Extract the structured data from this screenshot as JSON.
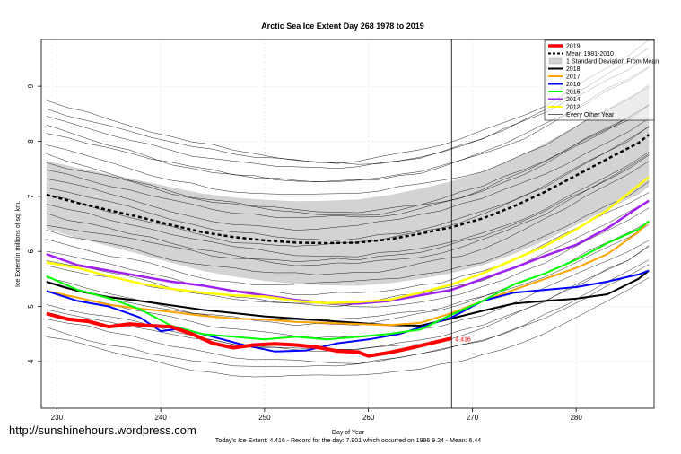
{
  "chart_data": {
    "type": "line",
    "title": "Arctic Sea Ice Extent Day 268 1978 to 2019",
    "xlabel": "Day of Year",
    "ylabel": "Ice Extent in millions of sq. km.",
    "caption": "Today's Ice Extent: 4.416  - Record for the day: 7.901 which occurred on 1996 9 24  - Mean: 6.44",
    "xlim": [
      228.5,
      287.5
    ],
    "ylim": [
      3.15,
      9.85
    ],
    "xticks": [
      230,
      240,
      250,
      260,
      270,
      280
    ],
    "yticks": [
      4,
      5,
      6,
      7,
      8,
      9
    ],
    "grid": true,
    "vline_day": 268,
    "annotation": {
      "text": "4.416",
      "x": 268,
      "y": 4.416,
      "color": "#ff0000"
    },
    "legend_position": "top-right",
    "legend": [
      {
        "label": "2019",
        "color": "#ff0000",
        "style": "thick"
      },
      {
        "label": "Mean 1981-2010",
        "color": "#000000",
        "style": "dashed"
      },
      {
        "label": "1 Standard Deviation From Mean",
        "color": "#d3d3d3",
        "style": "band"
      },
      {
        "label": "2018",
        "color": "#000000",
        "style": "solid"
      },
      {
        "label": "2017",
        "color": "#ffa500",
        "style": "solid"
      },
      {
        "label": "2016",
        "color": "#0000ff",
        "style": "solid"
      },
      {
        "label": "2015",
        "color": "#00ff00",
        "style": "solid"
      },
      {
        "label": "2014",
        "color": "#a020f0",
        "style": "solid"
      },
      {
        "label": "2012",
        "color": "#ffff00",
        "style": "solid"
      },
      {
        "label": "Every Other Year",
        "color": "#000000",
        "style": "thin"
      }
    ],
    "series": [
      {
        "name": "2019",
        "color": "#ff0000",
        "width": 4,
        "x": [
          229,
          231,
          233,
          235,
          237,
          239,
          241,
          243,
          245,
          247,
          249,
          251,
          253,
          255,
          257,
          259,
          260,
          262,
          264,
          266,
          268
        ],
        "y": [
          4.87,
          4.77,
          4.73,
          4.63,
          4.68,
          4.65,
          4.63,
          4.5,
          4.33,
          4.25,
          4.3,
          4.32,
          4.3,
          4.26,
          4.19,
          4.17,
          4.1,
          4.16,
          4.24,
          4.33,
          4.42
        ]
      },
      {
        "name": "Mean 1981-2010",
        "color": "#000000",
        "width": 2.5,
        "dash": "4,3",
        "x": [
          229,
          232,
          235,
          238,
          241,
          244,
          247,
          250,
          253,
          256,
          259,
          262,
          265,
          268,
          271,
          274,
          277,
          280,
          283,
          286,
          287
        ],
        "y": [
          7.03,
          6.88,
          6.75,
          6.62,
          6.48,
          6.35,
          6.26,
          6.2,
          6.16,
          6.15,
          6.16,
          6.22,
          6.32,
          6.44,
          6.6,
          6.82,
          7.08,
          7.38,
          7.68,
          7.97,
          8.12
        ]
      },
      {
        "name": "2018",
        "color": "#000000",
        "width": 2,
        "x": [
          229,
          232,
          235,
          238,
          241,
          244,
          247,
          250,
          253,
          256,
          259,
          262,
          265,
          268,
          271,
          274,
          277,
          280,
          283,
          286,
          287
        ],
        "y": [
          5.45,
          5.28,
          5.17,
          5.1,
          5.02,
          4.94,
          4.88,
          4.82,
          4.78,
          4.74,
          4.7,
          4.66,
          4.65,
          4.78,
          4.92,
          5.05,
          5.1,
          5.14,
          5.22,
          5.5,
          5.65
        ]
      },
      {
        "name": "2017",
        "color": "#ffa500",
        "width": 2,
        "x": [
          229,
          232,
          235,
          238,
          241,
          244,
          247,
          250,
          253,
          256,
          259,
          262,
          265,
          268,
          271,
          274,
          277,
          280,
          283,
          286,
          287
        ],
        "y": [
          5.28,
          5.16,
          5.03,
          4.96,
          4.9,
          4.83,
          4.78,
          4.76,
          4.72,
          4.7,
          4.68,
          4.66,
          4.7,
          4.88,
          5.1,
          5.3,
          5.5,
          5.7,
          5.95,
          6.35,
          6.55
        ]
      },
      {
        "name": "2016",
        "color": "#0000ff",
        "width": 2,
        "x": [
          229,
          232,
          235,
          238,
          240,
          242,
          245,
          248,
          251,
          254,
          257,
          260,
          263,
          265,
          268,
          271,
          274,
          277,
          280,
          283,
          286,
          287
        ],
        "y": [
          5.28,
          5.1,
          5.0,
          4.8,
          4.55,
          4.6,
          4.45,
          4.3,
          4.18,
          4.2,
          4.33,
          4.4,
          4.5,
          4.62,
          4.8,
          5.1,
          5.25,
          5.3,
          5.35,
          5.45,
          5.58,
          5.65
        ]
      },
      {
        "name": "2015",
        "color": "#00ff00",
        "width": 2,
        "x": [
          229,
          232,
          235,
          238,
          241,
          244,
          247,
          250,
          253,
          256,
          259,
          262,
          265,
          268,
          271,
          274,
          277,
          280,
          283,
          286,
          287
        ],
        "y": [
          5.55,
          5.3,
          5.15,
          4.95,
          4.65,
          4.5,
          4.45,
          4.4,
          4.45,
          4.4,
          4.45,
          4.5,
          4.58,
          4.85,
          5.1,
          5.4,
          5.6,
          5.85,
          6.15,
          6.4,
          6.55
        ]
      },
      {
        "name": "2014",
        "color": "#a020f0",
        "width": 2.5,
        "x": [
          229,
          232,
          235,
          238,
          241,
          244,
          247,
          250,
          253,
          256,
          259,
          262,
          265,
          268,
          271,
          274,
          277,
          280,
          283,
          286,
          287
        ],
        "y": [
          5.95,
          5.75,
          5.65,
          5.55,
          5.45,
          5.38,
          5.28,
          5.2,
          5.12,
          5.06,
          5.05,
          5.1,
          5.2,
          5.3,
          5.5,
          5.7,
          5.92,
          6.12,
          6.42,
          6.8,
          6.92
        ]
      },
      {
        "name": "2012",
        "color": "#ffff00",
        "width": 2.5,
        "x": [
          229,
          232,
          235,
          238,
          241,
          244,
          247,
          250,
          253,
          256,
          259,
          262,
          265,
          268,
          271,
          274,
          277,
          280,
          283,
          286,
          287
        ],
        "y": [
          5.8,
          5.7,
          5.55,
          5.42,
          5.32,
          5.25,
          5.2,
          5.18,
          5.1,
          5.06,
          5.08,
          5.12,
          5.25,
          5.4,
          5.6,
          5.85,
          6.1,
          6.4,
          6.75,
          7.2,
          7.35
        ]
      }
    ]
  },
  "watermark": "http://sunshinehours.wordpress.com"
}
